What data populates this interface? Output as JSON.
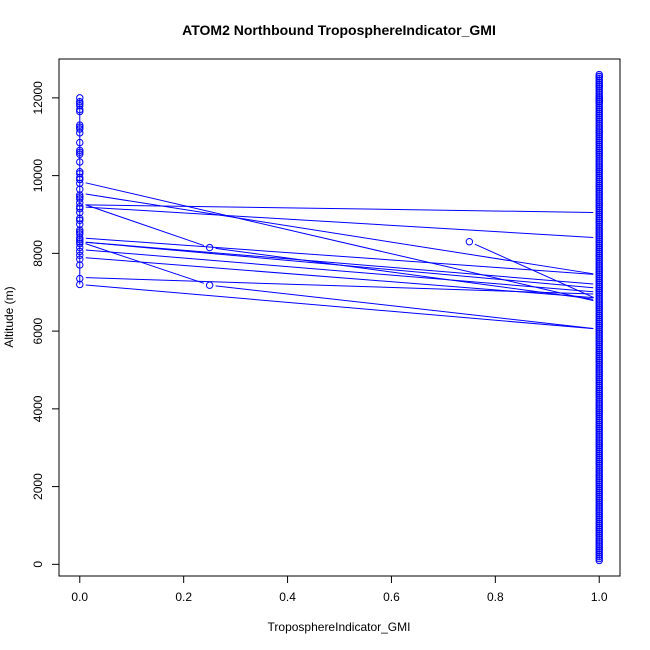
{
  "chart_data": {
    "type": "line",
    "title": "ATOM2 Northbound TroposphereIndicator_GMI",
    "xlabel": "TroposphereIndicator_GMI",
    "ylabel": "Altitude (m)",
    "xlim": [
      -0.04,
      1.04
    ],
    "ylim": [
      -300,
      13000
    ],
    "x_ticks": [
      "0.0",
      "0.2",
      "0.4",
      "0.6",
      "0.8",
      "1.0"
    ],
    "y_ticks": [
      "0",
      "2000",
      "4000",
      "6000",
      "8000",
      "10000",
      "12000"
    ],
    "grid": false,
    "line_color": "#0000ff",
    "marker": "open-circle",
    "segments": [
      {
        "from": [
          0,
          9850
        ],
        "to": [
          1,
          6750
        ]
      },
      {
        "from": [
          0,
          9550
        ],
        "to": [
          1,
          7450
        ]
      },
      {
        "from": [
          0,
          9250
        ],
        "to": [
          1,
          9050
        ]
      },
      {
        "from": [
          0,
          9200
        ],
        "to": [
          1,
          8400
        ]
      },
      {
        "from": [
          0,
          9300
        ],
        "to": [
          0.25,
          8150
        ]
      },
      {
        "from": [
          0.25,
          8150
        ],
        "to": [
          1,
          6800
        ]
      },
      {
        "from": [
          0,
          8400
        ],
        "to": [
          1,
          7450
        ]
      },
      {
        "from": [
          0,
          8300
        ],
        "to": [
          1,
          7200
        ]
      },
      {
        "from": [
          0,
          8300
        ],
        "to": [
          1,
          7100
        ]
      },
      {
        "from": [
          0,
          8300
        ],
        "to": [
          0.25,
          7180
        ]
      },
      {
        "from": [
          0.25,
          7180
        ],
        "to": [
          1,
          6050
        ]
      },
      {
        "from": [
          0,
          8100
        ],
        "to": [
          1,
          7000
        ]
      },
      {
        "from": [
          0,
          7900
        ],
        "to": [
          1,
          6850
        ]
      },
      {
        "from": [
          0,
          7380
        ],
        "to": [
          1,
          6950
        ]
      },
      {
        "from": [
          0,
          7200
        ],
        "to": [
          1,
          6050
        ]
      },
      {
        "from": [
          0.75,
          8300
        ],
        "to": [
          1,
          6800
        ]
      }
    ],
    "mid_points": [
      {
        "x": 0.25,
        "y": 8150
      },
      {
        "x": 0.25,
        "y": 7180
      },
      {
        "x": 0.75,
        "y": 8300
      }
    ],
    "column_points": [
      {
        "x": 0,
        "y_values": [
          12000,
          11900,
          11850,
          11800,
          11700,
          11650,
          11300,
          11250,
          11200,
          11100,
          10850,
          10650,
          10600,
          10550,
          10350,
          10100,
          10050,
          9950,
          9900,
          9800,
          9650,
          9500,
          9450,
          9400,
          9300,
          9200,
          9150,
          9050,
          8900,
          8850,
          8750,
          8600,
          8550,
          8500,
          8400,
          8350,
          8300,
          8250,
          8150,
          8050,
          7950,
          7850,
          7700,
          7350,
          7200
        ]
      },
      {
        "x": 1,
        "y_min": 100,
        "y_max": 12600,
        "step": 50,
        "extra": [
          12550,
          12300,
          12000,
          11950,
          11900
        ]
      }
    ]
  }
}
